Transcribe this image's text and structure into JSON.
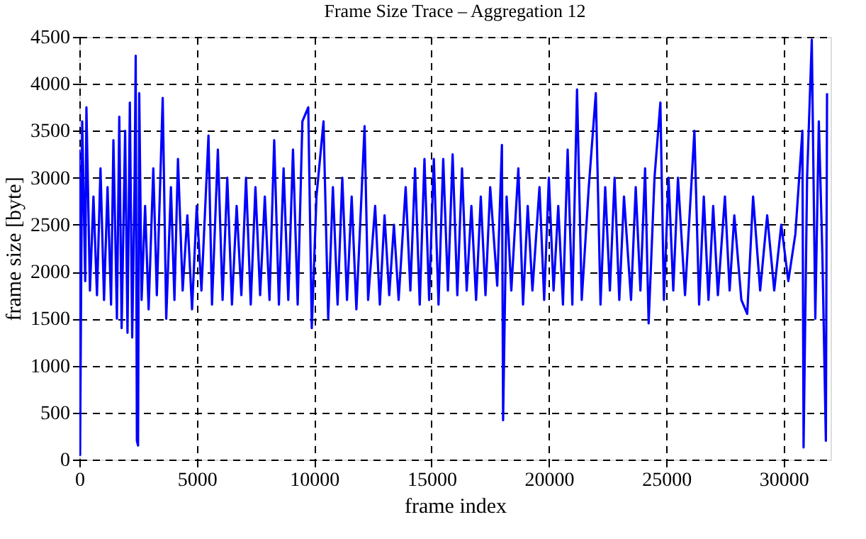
{
  "chart_data": {
    "type": "line",
    "title": "Frame Size Trace – Aggregation 12",
    "xlabel": "frame index",
    "ylabel": "frame size [byte]",
    "xlim": [
      0,
      32000
    ],
    "ylim": [
      0,
      4500
    ],
    "xticks": [
      0,
      5000,
      10000,
      15000,
      20000,
      25000,
      30000
    ],
    "yticks": [
      0,
      500,
      1000,
      1500,
      2000,
      2500,
      3000,
      3500,
      4000,
      4500
    ],
    "grid": true,
    "marker": "none",
    "line_style": "solid",
    "series": [
      {
        "color": "#0000ff",
        "x": [
          0,
          30,
          120,
          250,
          300,
          450,
          600,
          750,
          900,
          1050,
          1200,
          1350,
          1450,
          1600,
          1700,
          1800,
          1950,
          2050,
          2150,
          2250,
          2350,
          2400,
          2450,
          2500,
          2550,
          2650,
          2800,
          2950,
          3150,
          3300,
          3550,
          3700,
          3900,
          4050,
          4200,
          4400,
          4600,
          4800,
          5000,
          5200,
          5500,
          5650,
          5900,
          6100,
          6300,
          6500,
          6700,
          6900,
          7100,
          7300,
          7500,
          7700,
          7900,
          8100,
          8300,
          8500,
          8700,
          8900,
          9100,
          9300,
          9500,
          9750,
          9900,
          10100,
          10400,
          10600,
          10800,
          11000,
          11200,
          11400,
          11600,
          11800,
          12150,
          12300,
          12600,
          12800,
          13000,
          13200,
          13400,
          13600,
          13900,
          14100,
          14300,
          14500,
          14700,
          14900,
          15100,
          15300,
          15500,
          15700,
          15900,
          16100,
          16300,
          16500,
          16700,
          16900,
          17100,
          17300,
          17500,
          17800,
          18000,
          18050,
          18200,
          18400,
          18700,
          18900,
          19100,
          19300,
          19600,
          19800,
          20000,
          20200,
          20400,
          20600,
          20800,
          21000,
          21200,
          21400,
          21700,
          22000,
          22200,
          22400,
          22600,
          22800,
          23000,
          23200,
          23500,
          23700,
          23900,
          24100,
          24250,
          24500,
          24750,
          24900,
          25100,
          25300,
          25500,
          25800,
          26200,
          26400,
          26600,
          26800,
          27000,
          27200,
          27500,
          27700,
          27900,
          28200,
          28450,
          28700,
          29000,
          29300,
          29600,
          29900,
          30200,
          30500,
          30800,
          30850,
          31000,
          31200,
          31350,
          31500,
          31650,
          31800,
          31850
        ],
        "values": [
          3300,
          50,
          3600,
          1900,
          3750,
          1800,
          2800,
          1750,
          3100,
          1700,
          2900,
          1650,
          3400,
          1500,
          3650,
          1400,
          3500,
          1350,
          3800,
          1300,
          2900,
          4300,
          200,
          150,
          3900,
          1700,
          2700,
          1600,
          3100,
          1750,
          3850,
          1500,
          2900,
          1700,
          3200,
          1800,
          2600,
          1600,
          2700,
          1800,
          3450,
          1650,
          3300,
          1700,
          3000,
          1650,
          2700,
          1750,
          3000,
          1650,
          2900,
          1750,
          2800,
          1700,
          3400,
          1650,
          3100,
          1700,
          3300,
          1650,
          3600,
          3750,
          1400,
          2800,
          3600,
          1500,
          2900,
          1650,
          3000,
          1700,
          2800,
          1600,
          3550,
          1700,
          2700,
          1650,
          2600,
          1750,
          2500,
          1700,
          2900,
          1800,
          3100,
          1650,
          3200,
          1700,
          3200,
          1650,
          3200,
          1800,
          3250,
          1750,
          3100,
          1800,
          2700,
          1700,
          2800,
          1750,
          2900,
          1850,
          3350,
          420,
          2800,
          1800,
          3100,
          1650,
          2700,
          1800,
          2900,
          1700,
          3000,
          1800,
          2700,
          1650,
          3300,
          1650,
          3940,
          1700,
          2900,
          3900,
          1650,
          2900,
          1800,
          3000,
          1700,
          2800,
          1700,
          2900,
          1800,
          3100,
          1450,
          3000,
          3800,
          1700,
          3000,
          1800,
          3000,
          1750,
          3500,
          1650,
          2800,
          1700,
          2700,
          1750,
          2800,
          1800,
          2600,
          1700,
          1550,
          2800,
          1800,
          2600,
          1800,
          2500,
          1900,
          2400,
          3500,
          130,
          3000,
          4470,
          1500,
          3600,
          2200,
          200,
          3900
        ]
      }
    ]
  }
}
